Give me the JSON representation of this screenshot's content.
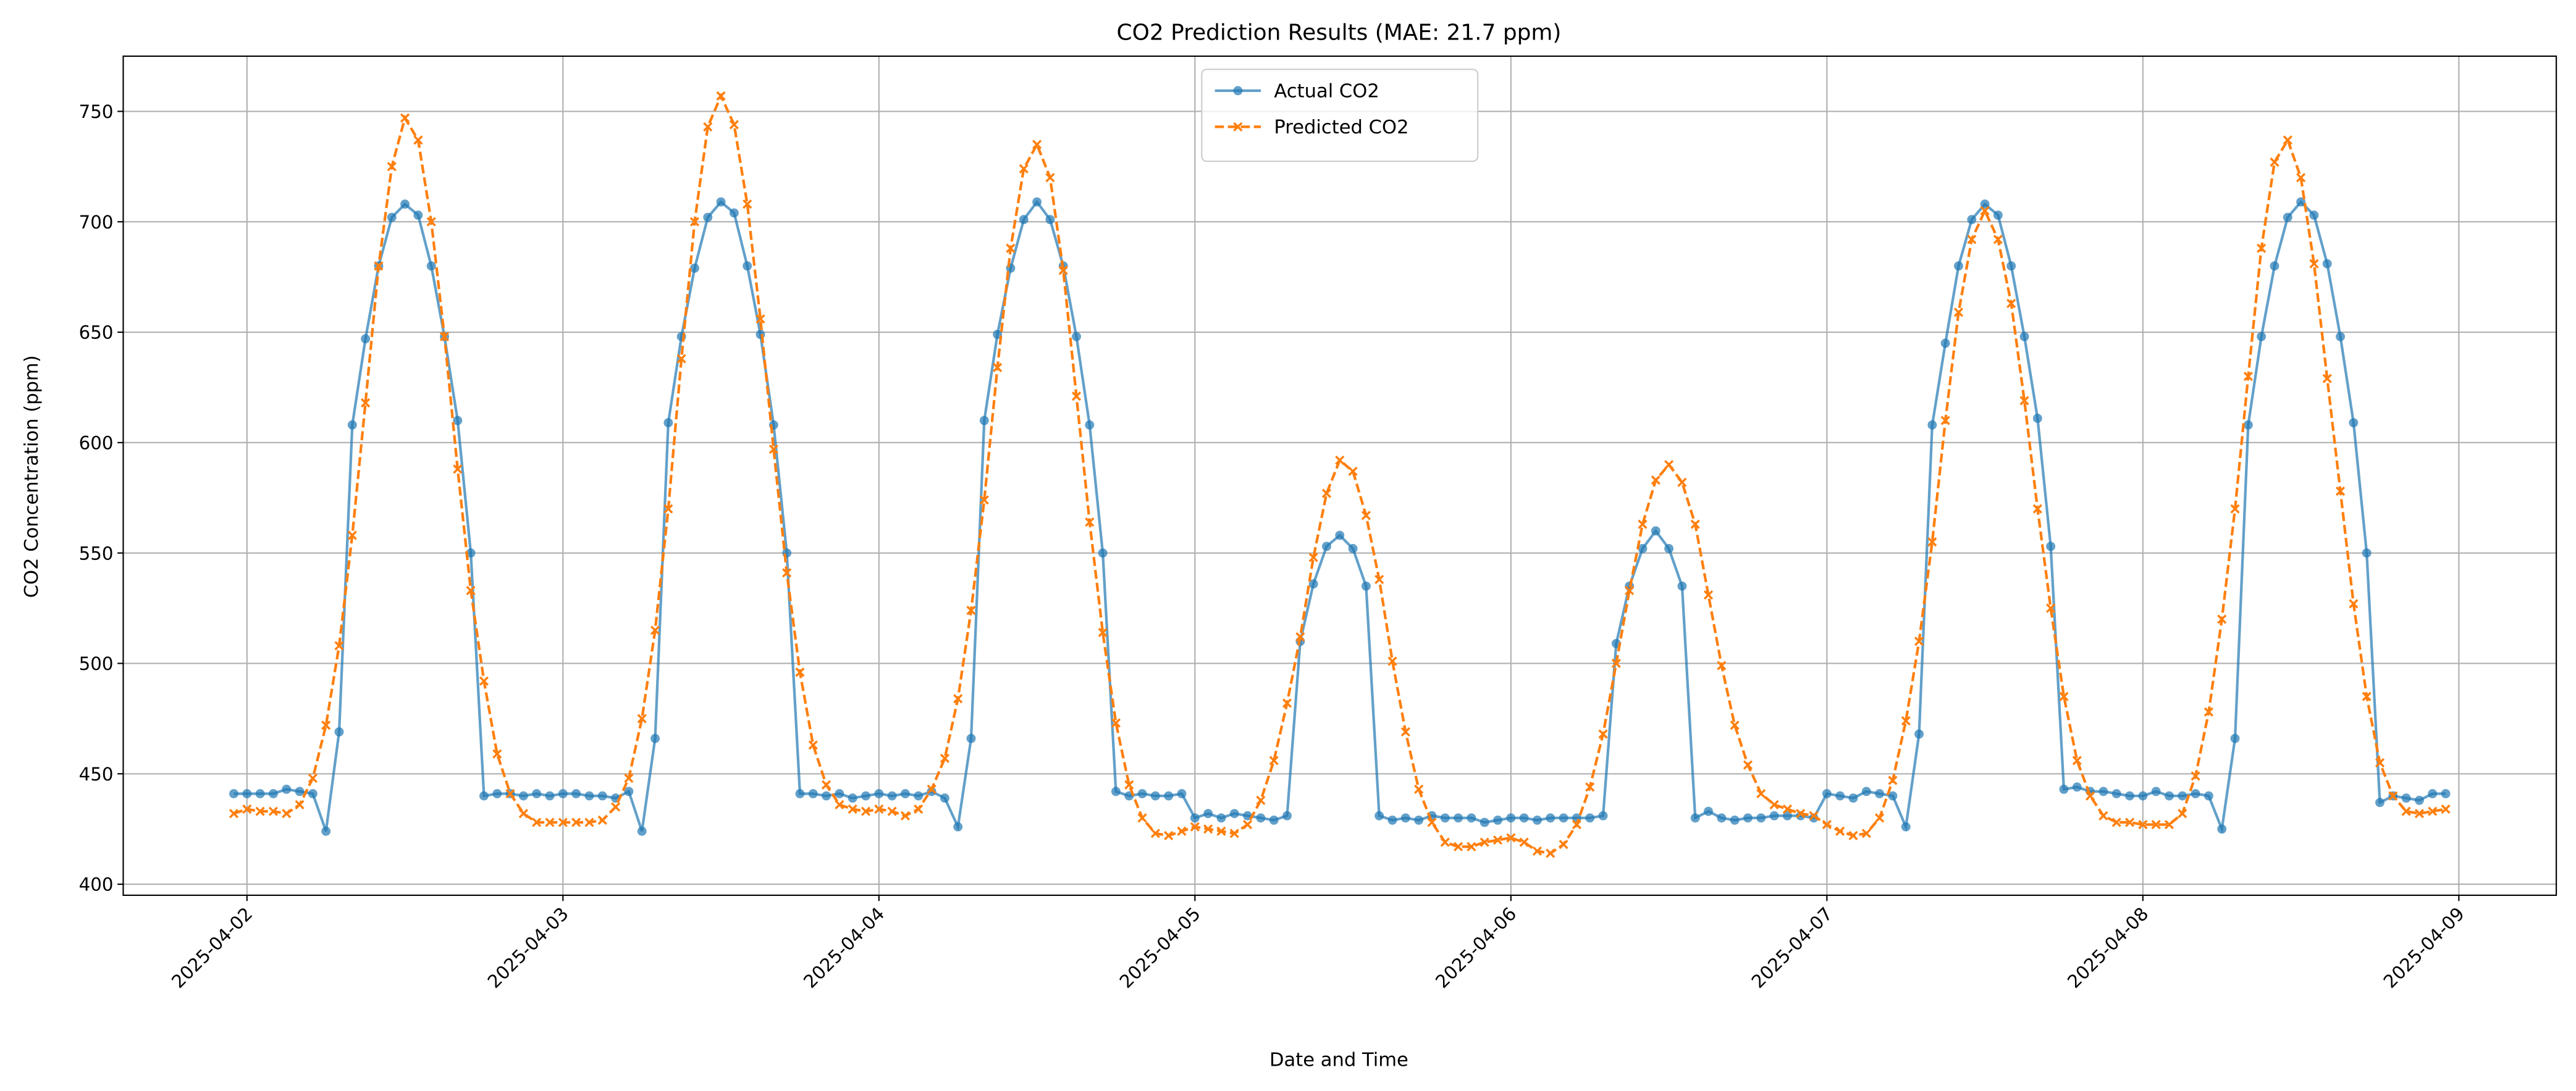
{
  "chart_data": {
    "type": "line",
    "title": "CO2 Prediction Results (MAE: 21.7 ppm)",
    "x_label": "Date and Time",
    "y_label": "CO2 Concentration (ppm)",
    "x": [
      "2025-04-01 23:00",
      "2025-04-02 00:00",
      "2025-04-02 01:00",
      "2025-04-02 02:00",
      "2025-04-02 03:00",
      "2025-04-02 04:00",
      "2025-04-02 05:00",
      "2025-04-02 06:00",
      "2025-04-02 07:00",
      "2025-04-02 08:00",
      "2025-04-02 09:00",
      "2025-04-02 10:00",
      "2025-04-02 11:00",
      "2025-04-02 12:00",
      "2025-04-02 13:00",
      "2025-04-02 14:00",
      "2025-04-02 15:00",
      "2025-04-02 16:00",
      "2025-04-02 17:00",
      "2025-04-02 18:00",
      "2025-04-02 19:00",
      "2025-04-02 20:00",
      "2025-04-02 21:00",
      "2025-04-02 22:00",
      "2025-04-02 23:00",
      "2025-04-03 00:00",
      "2025-04-03 01:00",
      "2025-04-03 02:00",
      "2025-04-03 03:00",
      "2025-04-03 04:00",
      "2025-04-03 05:00",
      "2025-04-03 06:00",
      "2025-04-03 07:00",
      "2025-04-03 08:00",
      "2025-04-03 09:00",
      "2025-04-03 10:00",
      "2025-04-03 11:00",
      "2025-04-03 12:00",
      "2025-04-03 13:00",
      "2025-04-03 14:00",
      "2025-04-03 15:00",
      "2025-04-03 16:00",
      "2025-04-03 17:00",
      "2025-04-03 18:00",
      "2025-04-03 19:00",
      "2025-04-03 20:00",
      "2025-04-03 21:00",
      "2025-04-03 22:00",
      "2025-04-03 23:00",
      "2025-04-04 00:00",
      "2025-04-04 01:00",
      "2025-04-04 02:00",
      "2025-04-04 03:00",
      "2025-04-04 04:00",
      "2025-04-04 05:00",
      "2025-04-04 06:00",
      "2025-04-04 07:00",
      "2025-04-04 08:00",
      "2025-04-04 09:00",
      "2025-04-04 10:00",
      "2025-04-04 11:00",
      "2025-04-04 12:00",
      "2025-04-04 13:00",
      "2025-04-04 14:00",
      "2025-04-04 15:00",
      "2025-04-04 16:00",
      "2025-04-04 17:00",
      "2025-04-04 18:00",
      "2025-04-04 19:00",
      "2025-04-04 20:00",
      "2025-04-04 21:00",
      "2025-04-04 22:00",
      "2025-04-04 23:00",
      "2025-04-05 00:00",
      "2025-04-05 01:00",
      "2025-04-05 02:00",
      "2025-04-05 03:00",
      "2025-04-05 04:00",
      "2025-04-05 05:00",
      "2025-04-05 06:00",
      "2025-04-05 07:00",
      "2025-04-05 08:00",
      "2025-04-05 09:00",
      "2025-04-05 10:00",
      "2025-04-05 11:00",
      "2025-04-05 12:00",
      "2025-04-05 13:00",
      "2025-04-05 14:00",
      "2025-04-05 15:00",
      "2025-04-05 16:00",
      "2025-04-05 17:00",
      "2025-04-05 18:00",
      "2025-04-05 19:00",
      "2025-04-05 20:00",
      "2025-04-05 21:00",
      "2025-04-05 22:00",
      "2025-04-05 23:00",
      "2025-04-06 00:00",
      "2025-04-06 01:00",
      "2025-04-06 02:00",
      "2025-04-06 03:00",
      "2025-04-06 04:00",
      "2025-04-06 05:00",
      "2025-04-06 06:00",
      "2025-04-06 07:00",
      "2025-04-06 08:00",
      "2025-04-06 09:00",
      "2025-04-06 10:00",
      "2025-04-06 11:00",
      "2025-04-06 12:00",
      "2025-04-06 13:00",
      "2025-04-06 14:00",
      "2025-04-06 15:00",
      "2025-04-06 16:00",
      "2025-04-06 17:00",
      "2025-04-06 18:00",
      "2025-04-06 19:00",
      "2025-04-06 20:00",
      "2025-04-06 21:00",
      "2025-04-06 22:00",
      "2025-04-06 23:00",
      "2025-04-07 00:00",
      "2025-04-07 01:00",
      "2025-04-07 02:00",
      "2025-04-07 03:00",
      "2025-04-07 04:00",
      "2025-04-07 05:00",
      "2025-04-07 06:00",
      "2025-04-07 07:00",
      "2025-04-07 08:00",
      "2025-04-07 09:00",
      "2025-04-07 10:00",
      "2025-04-07 11:00",
      "2025-04-07 12:00",
      "2025-04-07 13:00",
      "2025-04-07 14:00",
      "2025-04-07 15:00",
      "2025-04-07 16:00",
      "2025-04-07 17:00",
      "2025-04-07 18:00",
      "2025-04-07 19:00",
      "2025-04-07 20:00",
      "2025-04-07 21:00",
      "2025-04-07 22:00",
      "2025-04-07 23:00",
      "2025-04-08 00:00",
      "2025-04-08 01:00",
      "2025-04-08 02:00",
      "2025-04-08 03:00",
      "2025-04-08 04:00",
      "2025-04-08 05:00",
      "2025-04-08 06:00",
      "2025-04-08 07:00",
      "2025-04-08 08:00",
      "2025-04-08 09:00",
      "2025-04-08 10:00",
      "2025-04-08 11:00",
      "2025-04-08 12:00",
      "2025-04-08 13:00",
      "2025-04-08 14:00",
      "2025-04-08 15:00",
      "2025-04-08 16:00",
      "2025-04-08 17:00",
      "2025-04-08 18:00",
      "2025-04-08 19:00",
      "2025-04-08 20:00",
      "2025-04-08 21:00",
      "2025-04-08 22:00",
      "2025-04-08 23:00"
    ],
    "series": [
      {
        "name": "Actual CO2",
        "color": "#1f77b4",
        "linestyle": "solid",
        "marker": "circle",
        "values": [
          441,
          441,
          441,
          441,
          443,
          442,
          441,
          424,
          469,
          608,
          647,
          680,
          702,
          708,
          703,
          680,
          648,
          610,
          550,
          440,
          441,
          441,
          440,
          441,
          440,
          441,
          441,
          440,
          440,
          439,
          442,
          424,
          466,
          609,
          648,
          679,
          702,
          709,
          704,
          680,
          649,
          608,
          550,
          441,
          441,
          440,
          441,
          439,
          440,
          441,
          440,
          441,
          440,
          442,
          439,
          426,
          466,
          610,
          649,
          679,
          701,
          709,
          701,
          680,
          648,
          608,
          550,
          442,
          440,
          441,
          440,
          440,
          441,
          430,
          432,
          430,
          432,
          431,
          430,
          429,
          431,
          510,
          536,
          553,
          558,
          552,
          535,
          431,
          429,
          430,
          429,
          431,
          430,
          430,
          430,
          428,
          429,
          430,
          430,
          429,
          430,
          430,
          430,
          430,
          431,
          509,
          535,
          552,
          560,
          552,
          535,
          430,
          433,
          430,
          429,
          430,
          430,
          431,
          431,
          431,
          430,
          441,
          440,
          439,
          442,
          441,
          440,
          426,
          468,
          608,
          645,
          680,
          701,
          708,
          703,
          680,
          648,
          611,
          553,
          443,
          444,
          442,
          442,
          441,
          440,
          440,
          442,
          440,
          440,
          441,
          440,
          425,
          466,
          608,
          648,
          680,
          702,
          709,
          703,
          681,
          648,
          609,
          550,
          437,
          440,
          439,
          438,
          441,
          441
        ]
      },
      {
        "name": "Predicted CO2",
        "color": "#ff7f0e",
        "linestyle": "dashed",
        "marker": "x",
        "values": [
          432,
          434,
          433,
          433,
          432,
          436,
          448,
          472,
          508,
          558,
          618,
          680,
          725,
          747,
          737,
          700,
          648,
          588,
          533,
          492,
          459,
          441,
          432,
          428,
          428,
          428,
          428,
          428,
          429,
          435,
          448,
          475,
          515,
          570,
          638,
          700,
          743,
          757,
          744,
          708,
          656,
          597,
          541,
          496,
          463,
          445,
          436,
          434,
          433,
          434,
          433,
          431,
          434,
          443,
          457,
          484,
          524,
          574,
          634,
          688,
          724,
          735,
          720,
          678,
          621,
          564,
          514,
          473,
          445,
          430,
          423,
          422,
          424,
          426,
          425,
          424,
          423,
          427,
          438,
          456,
          482,
          512,
          548,
          577,
          592,
          587,
          567,
          538,
          501,
          469,
          443,
          428,
          419,
          417,
          417,
          419,
          420,
          421,
          419,
          415,
          414,
          418,
          427,
          444,
          468,
          500,
          533,
          563,
          583,
          590,
          582,
          563,
          531,
          499,
          472,
          454,
          441,
          436,
          434,
          432,
          431,
          427,
          424,
          422,
          423,
          430,
          447,
          474,
          510,
          555,
          610,
          659,
          692,
          705,
          692,
          663,
          619,
          570,
          525,
          485,
          456,
          440,
          431,
          428,
          428,
          427,
          427,
          427,
          432,
          449,
          478,
          520,
          570,
          630,
          688,
          727,
          737,
          720,
          681,
          629,
          578,
          527,
          485,
          455,
          440,
          433,
          432,
          433,
          434
        ]
      }
    ],
    "xlim": [
      "2025-04-01 14:36",
      "2025-04-09 07:24"
    ],
    "xticks": [
      "2025-04-02",
      "2025-04-03",
      "2025-04-04",
      "2025-04-05",
      "2025-04-06",
      "2025-04-07",
      "2025-04-08",
      "2025-04-09"
    ],
    "ylim": [
      395,
      775
    ],
    "yticks": [
      400,
      450,
      500,
      550,
      600,
      650,
      700,
      750
    ],
    "grid": true,
    "legend": "upper center"
  }
}
